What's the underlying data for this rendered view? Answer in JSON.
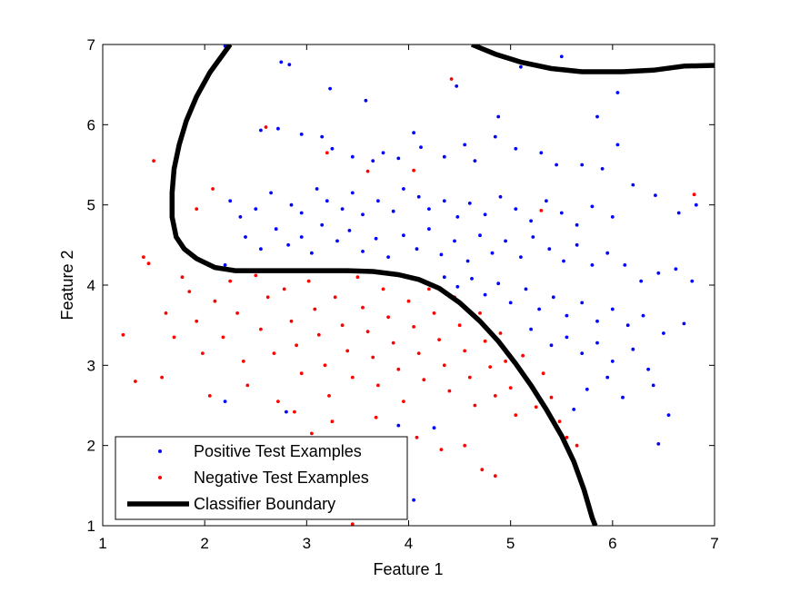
{
  "chart_data": {
    "type": "scatter",
    "xlabel": "Feature 1",
    "ylabel": "Feature 2",
    "xlim": [
      1,
      7
    ],
    "ylim": [
      1,
      7
    ],
    "xticks": [
      "1",
      "2",
      "3",
      "4",
      "5",
      "6",
      "7"
    ],
    "yticks": [
      "1",
      "2",
      "3",
      "4",
      "5",
      "6",
      "7"
    ],
    "grid": false,
    "legend_position": "bottom-left",
    "series": [
      {
        "name": "Positive Test Examples",
        "kind": "points",
        "color": "#0000ff",
        "points": [
          [
            2.2,
            6.98
          ],
          [
            2.75,
            6.78
          ],
          [
            2.83,
            6.75
          ],
          [
            3.23,
            6.45
          ],
          [
            3.58,
            6.3
          ],
          [
            4.47,
            6.48
          ],
          [
            5.1,
            6.72
          ],
          [
            5.5,
            6.85
          ],
          [
            6.05,
            6.4
          ],
          [
            5.85,
            6.1
          ],
          [
            4.88,
            6.1
          ],
          [
            2.55,
            5.93
          ],
          [
            2.72,
            5.95
          ],
          [
            2.95,
            5.88
          ],
          [
            3.15,
            5.85
          ],
          [
            3.25,
            5.7
          ],
          [
            3.45,
            5.6
          ],
          [
            3.65,
            5.55
          ],
          [
            3.75,
            5.65
          ],
          [
            3.9,
            5.58
          ],
          [
            4.05,
            5.9
          ],
          [
            4.12,
            5.72
          ],
          [
            4.35,
            5.6
          ],
          [
            4.55,
            5.75
          ],
          [
            4.65,
            5.55
          ],
          [
            4.85,
            5.85
          ],
          [
            5.05,
            5.7
          ],
          [
            5.3,
            5.65
          ],
          [
            5.45,
            5.5
          ],
          [
            5.7,
            5.5
          ],
          [
            5.9,
            5.45
          ],
          [
            6.05,
            5.75
          ],
          [
            6.2,
            5.25
          ],
          [
            6.42,
            5.12
          ],
          [
            6.65,
            4.9
          ],
          [
            6.82,
            5.0
          ],
          [
            2.25,
            5.05
          ],
          [
            2.35,
            4.85
          ],
          [
            2.5,
            4.95
          ],
          [
            2.65,
            5.15
          ],
          [
            2.85,
            5.0
          ],
          [
            2.95,
            4.9
          ],
          [
            3.1,
            5.2
          ],
          [
            3.2,
            5.05
          ],
          [
            3.35,
            4.95
          ],
          [
            3.45,
            5.15
          ],
          [
            3.55,
            4.88
          ],
          [
            3.7,
            5.05
          ],
          [
            3.85,
            4.92
          ],
          [
            3.95,
            5.2
          ],
          [
            4.1,
            5.1
          ],
          [
            4.2,
            4.95
          ],
          [
            4.35,
            5.05
          ],
          [
            4.48,
            4.85
          ],
          [
            4.6,
            5.02
          ],
          [
            4.75,
            4.88
          ],
          [
            4.9,
            5.1
          ],
          [
            5.05,
            4.95
          ],
          [
            5.2,
            4.8
          ],
          [
            5.35,
            5.05
          ],
          [
            5.5,
            4.9
          ],
          [
            5.65,
            4.75
          ],
          [
            5.8,
            4.98
          ],
          [
            6.0,
            4.85
          ],
          [
            2.2,
            4.25
          ],
          [
            2.4,
            4.6
          ],
          [
            2.55,
            4.45
          ],
          [
            2.7,
            4.7
          ],
          [
            2.82,
            4.5
          ],
          [
            2.95,
            4.6
          ],
          [
            3.05,
            4.4
          ],
          [
            3.15,
            4.75
          ],
          [
            3.3,
            4.55
          ],
          [
            3.42,
            4.68
          ],
          [
            3.55,
            4.42
          ],
          [
            3.68,
            4.58
          ],
          [
            3.8,
            4.35
          ],
          [
            3.95,
            4.62
          ],
          [
            4.08,
            4.45
          ],
          [
            4.2,
            4.7
          ],
          [
            4.32,
            4.38
          ],
          [
            4.45,
            4.55
          ],
          [
            4.58,
            4.3
          ],
          [
            4.7,
            4.62
          ],
          [
            4.82,
            4.4
          ],
          [
            4.95,
            4.55
          ],
          [
            5.1,
            4.35
          ],
          [
            5.22,
            4.6
          ],
          [
            5.38,
            4.45
          ],
          [
            5.52,
            4.3
          ],
          [
            5.65,
            4.5
          ],
          [
            5.8,
            4.25
          ],
          [
            5.95,
            4.4
          ],
          [
            6.12,
            4.25
          ],
          [
            6.28,
            4.05
          ],
          [
            6.45,
            4.15
          ],
          [
            6.62,
            4.2
          ],
          [
            6.78,
            4.05
          ],
          [
            4.35,
            4.1
          ],
          [
            4.48,
            3.98
          ],
          [
            4.62,
            4.08
          ],
          [
            4.75,
            3.88
          ],
          [
            4.88,
            4.02
          ],
          [
            5.0,
            3.78
          ],
          [
            5.15,
            3.95
          ],
          [
            5.28,
            3.7
          ],
          [
            5.42,
            3.85
          ],
          [
            5.55,
            3.62
          ],
          [
            5.7,
            3.78
          ],
          [
            5.85,
            3.55
          ],
          [
            6.0,
            3.7
          ],
          [
            6.15,
            3.5
          ],
          [
            6.3,
            3.62
          ],
          [
            6.5,
            3.4
          ],
          [
            6.7,
            3.52
          ],
          [
            5.2,
            3.45
          ],
          [
            5.4,
            3.25
          ],
          [
            5.55,
            3.35
          ],
          [
            5.7,
            3.15
          ],
          [
            5.85,
            3.28
          ],
          [
            6.0,
            3.05
          ],
          [
            6.2,
            3.2
          ],
          [
            6.35,
            2.95
          ],
          [
            5.95,
            2.85
          ],
          [
            5.75,
            2.7
          ],
          [
            6.1,
            2.6
          ],
          [
            6.4,
            2.75
          ],
          [
            5.62,
            2.45
          ],
          [
            6.55,
            2.38
          ],
          [
            6.45,
            2.02
          ],
          [
            2.2,
            2.55
          ],
          [
            2.8,
            2.42
          ],
          [
            4.05,
            1.32
          ],
          [
            3.9,
            2.25
          ],
          [
            4.25,
            2.22
          ]
        ]
      },
      {
        "name": "Negative Test Examples",
        "kind": "points",
        "color": "#ff0000",
        "points": [
          [
            4.42,
            6.57
          ],
          [
            1.5,
            5.55
          ],
          [
            2.6,
            5.97
          ],
          [
            3.2,
            5.65
          ],
          [
            3.6,
            5.42
          ],
          [
            4.05,
            5.43
          ],
          [
            6.8,
            5.13
          ],
          [
            5.3,
            4.93
          ],
          [
            1.4,
            4.35
          ],
          [
            1.45,
            4.27
          ],
          [
            1.92,
            4.95
          ],
          [
            2.08,
            5.2
          ],
          [
            1.2,
            3.38
          ],
          [
            1.32,
            2.8
          ],
          [
            1.58,
            2.85
          ],
          [
            1.62,
            3.65
          ],
          [
            1.7,
            3.35
          ],
          [
            1.78,
            4.1
          ],
          [
            1.85,
            3.92
          ],
          [
            1.92,
            3.55
          ],
          [
            1.98,
            3.15
          ],
          [
            2.05,
            2.62
          ],
          [
            2.1,
            3.8
          ],
          [
            2.18,
            3.35
          ],
          [
            2.25,
            4.05
          ],
          [
            2.32,
            3.65
          ],
          [
            2.38,
            3.05
          ],
          [
            2.42,
            2.75
          ],
          [
            2.5,
            4.12
          ],
          [
            2.55,
            3.45
          ],
          [
            2.62,
            3.85
          ],
          [
            2.68,
            3.15
          ],
          [
            2.72,
            2.55
          ],
          [
            2.78,
            3.95
          ],
          [
            2.85,
            3.55
          ],
          [
            2.9,
            3.25
          ],
          [
            2.95,
            2.9
          ],
          [
            3.02,
            4.05
          ],
          [
            3.08,
            3.7
          ],
          [
            3.12,
            3.38
          ],
          [
            3.18,
            3.0
          ],
          [
            3.22,
            2.62
          ],
          [
            3.28,
            3.85
          ],
          [
            3.35,
            3.5
          ],
          [
            3.4,
            3.18
          ],
          [
            3.45,
            2.85
          ],
          [
            3.5,
            4.1
          ],
          [
            3.55,
            3.72
          ],
          [
            3.6,
            3.42
          ],
          [
            3.65,
            3.1
          ],
          [
            3.7,
            2.75
          ],
          [
            3.75,
            3.95
          ],
          [
            3.8,
            3.6
          ],
          [
            3.85,
            3.28
          ],
          [
            3.9,
            2.95
          ],
          [
            3.95,
            2.55
          ],
          [
            4.0,
            3.8
          ],
          [
            4.05,
            3.48
          ],
          [
            4.1,
            3.15
          ],
          [
            4.15,
            2.82
          ],
          [
            4.2,
            3.95
          ],
          [
            4.25,
            3.65
          ],
          [
            4.3,
            3.32
          ],
          [
            4.35,
            3.0
          ],
          [
            4.4,
            2.68
          ],
          [
            4.45,
            3.85
          ],
          [
            4.5,
            3.5
          ],
          [
            4.55,
            3.18
          ],
          [
            4.6,
            2.85
          ],
          [
            4.65,
            2.5
          ],
          [
            4.7,
            3.65
          ],
          [
            4.75,
            3.3
          ],
          [
            4.8,
            2.98
          ],
          [
            4.85,
            2.62
          ],
          [
            4.9,
            3.4
          ],
          [
            4.95,
            3.05
          ],
          [
            5.0,
            2.72
          ],
          [
            5.05,
            2.38
          ],
          [
            5.12,
            3.12
          ],
          [
            5.18,
            2.8
          ],
          [
            5.25,
            2.48
          ],
          [
            5.32,
            2.9
          ],
          [
            5.4,
            2.6
          ],
          [
            5.48,
            2.3
          ],
          [
            5.55,
            2.1
          ],
          [
            5.65,
            2.0
          ],
          [
            2.88,
            2.42
          ],
          [
            3.05,
            2.15
          ],
          [
            3.25,
            2.3
          ],
          [
            3.52,
            2.05
          ],
          [
            3.68,
            2.35
          ],
          [
            3.88,
            1.88
          ],
          [
            4.08,
            2.1
          ],
          [
            4.32,
            1.95
          ],
          [
            4.55,
            2.0
          ],
          [
            4.72,
            1.7
          ],
          [
            4.85,
            1.62
          ],
          [
            3.45,
            1.02
          ],
          [
            3.72,
            1.6
          ]
        ]
      },
      {
        "name": "Classifier Boundary",
        "kind": "line",
        "color": "#000000",
        "points": [
          [
            2.25,
            7.0
          ],
          [
            2.05,
            6.65
          ],
          [
            1.92,
            6.35
          ],
          [
            1.82,
            6.05
          ],
          [
            1.75,
            5.75
          ],
          [
            1.7,
            5.45
          ],
          [
            1.68,
            5.15
          ],
          [
            1.68,
            4.85
          ],
          [
            1.72,
            4.6
          ],
          [
            1.8,
            4.45
          ],
          [
            1.92,
            4.33
          ],
          [
            2.1,
            4.22
          ],
          [
            2.3,
            4.18
          ],
          [
            2.6,
            4.18
          ],
          [
            3.0,
            4.18
          ],
          [
            3.4,
            4.18
          ],
          [
            3.65,
            4.17
          ],
          [
            3.9,
            4.13
          ],
          [
            4.1,
            4.07
          ],
          [
            4.3,
            3.96
          ],
          [
            4.5,
            3.78
          ],
          [
            4.7,
            3.55
          ],
          [
            4.88,
            3.3
          ],
          [
            5.05,
            3.02
          ],
          [
            5.2,
            2.75
          ],
          [
            5.35,
            2.45
          ],
          [
            5.5,
            2.12
          ],
          [
            5.62,
            1.8
          ],
          [
            5.72,
            1.45
          ],
          [
            5.8,
            1.1
          ],
          [
            5.83,
            1.0
          ]
        ]
      },
      {
        "name": "",
        "kind": "line",
        "color": "#000000",
        "points": [
          [
            4.62,
            7.0
          ],
          [
            4.85,
            6.88
          ],
          [
            5.1,
            6.78
          ],
          [
            5.4,
            6.7
          ],
          [
            5.7,
            6.66
          ],
          [
            6.1,
            6.66
          ],
          [
            6.4,
            6.68
          ],
          [
            6.7,
            6.73
          ],
          [
            7.0,
            6.74
          ]
        ]
      }
    ]
  }
}
